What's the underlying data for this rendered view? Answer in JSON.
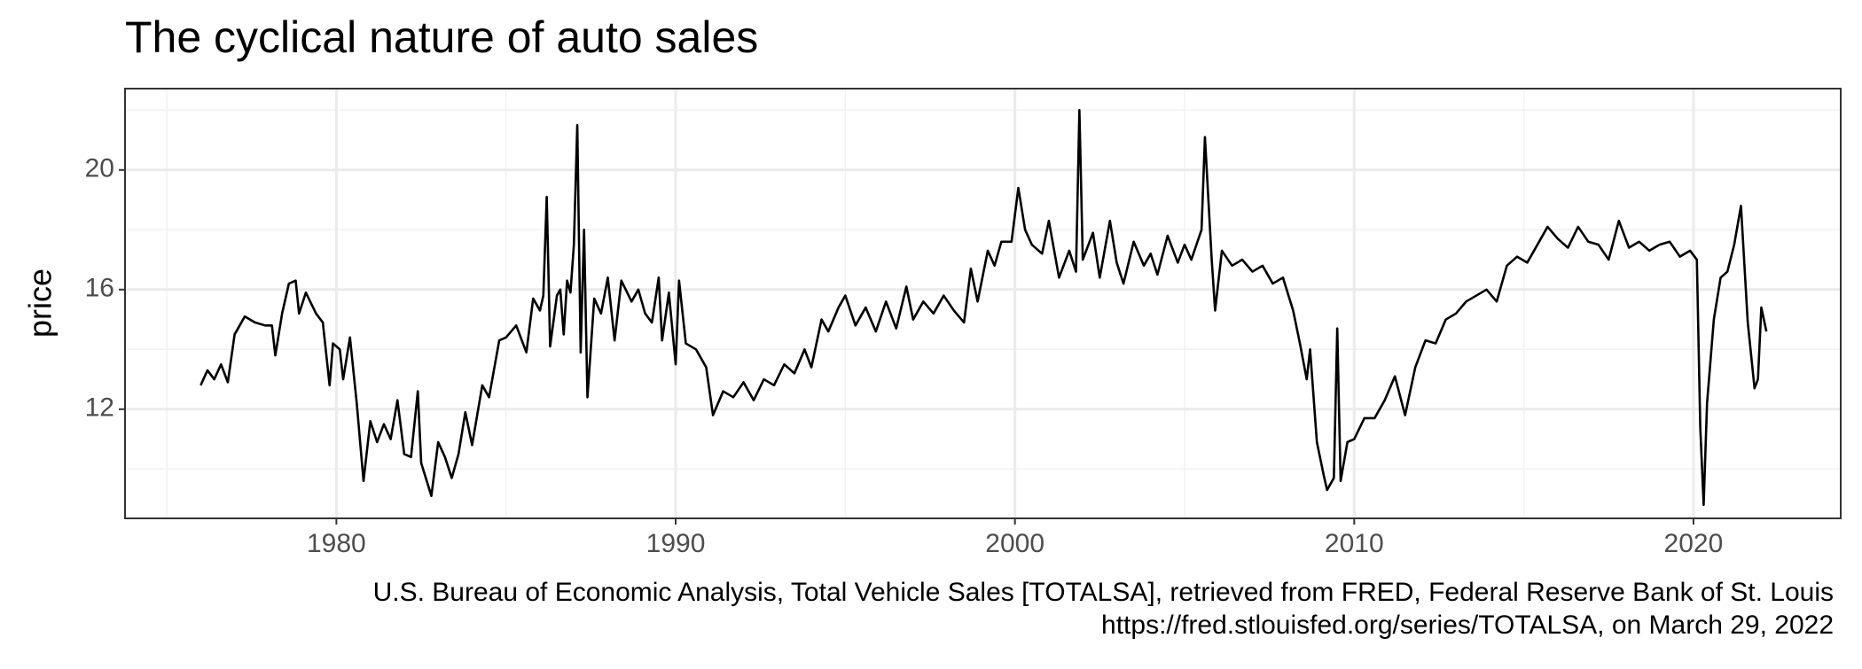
{
  "chart_data": {
    "type": "line",
    "title": "The cyclical nature of auto sales",
    "y_label": "price",
    "caption": [
      "U.S. Bureau of Economic Analysis, Total Vehicle Sales [TOTALSA], retrieved from FRED, Federal Reserve Bank of St. Louis",
      "https://fred.stlouisfed.org/series/TOTALSA, on March 29, 2022"
    ],
    "x": [
      1976.0,
      1976.2,
      1976.4,
      1976.6,
      1976.8,
      1977.0,
      1977.3,
      1977.6,
      1977.9,
      1978.1,
      1978.2,
      1978.4,
      1978.6,
      1978.8,
      1978.9,
      1979.1,
      1979.4,
      1979.6,
      1979.8,
      1979.9,
      1980.1,
      1980.2,
      1980.4,
      1980.6,
      1980.8,
      1981.0,
      1981.2,
      1981.4,
      1981.6,
      1981.8,
      1982.0,
      1982.2,
      1982.4,
      1982.5,
      1982.8,
      1983.0,
      1983.2,
      1983.4,
      1983.6,
      1983.8,
      1984.0,
      1984.3,
      1984.5,
      1984.8,
      1985.0,
      1985.3,
      1985.6,
      1985.8,
      1986.0,
      1986.1,
      1986.2,
      1986.3,
      1986.5,
      1986.6,
      1986.7,
      1986.8,
      1986.9,
      1987.0,
      1987.1,
      1987.2,
      1987.3,
      1987.4,
      1987.6,
      1987.8,
      1988.0,
      1988.2,
      1988.4,
      1988.7,
      1988.9,
      1989.1,
      1989.3,
      1989.5,
      1989.6,
      1989.8,
      1990.0,
      1990.1,
      1990.3,
      1990.6,
      1990.9,
      1991.1,
      1991.4,
      1991.7,
      1992.0,
      1992.3,
      1992.6,
      1992.9,
      1993.2,
      1993.5,
      1993.8,
      1994.0,
      1994.3,
      1994.5,
      1994.8,
      1995.0,
      1995.3,
      1995.6,
      1995.9,
      1996.2,
      1996.5,
      1996.8,
      1997.0,
      1997.3,
      1997.6,
      1997.9,
      1998.2,
      1998.5,
      1998.7,
      1998.9,
      1999.2,
      1999.4,
      1999.6,
      1999.9,
      2000.1,
      2000.3,
      2000.5,
      2000.8,
      2001.0,
      2001.3,
      2001.6,
      2001.8,
      2001.9,
      2002.0,
      2002.3,
      2002.5,
      2002.8,
      2003.0,
      2003.2,
      2003.5,
      2003.8,
      2004.0,
      2004.2,
      2004.5,
      2004.8,
      2005.0,
      2005.2,
      2005.5,
      2005.6,
      2005.8,
      2005.9,
      2006.1,
      2006.4,
      2006.7,
      2007.0,
      2007.3,
      2007.6,
      2007.9,
      2008.2,
      2008.4,
      2008.6,
      2008.7,
      2008.9,
      2009.1,
      2009.2,
      2009.4,
      2009.5,
      2009.6,
      2009.8,
      2010.0,
      2010.3,
      2010.6,
      2010.9,
      2011.2,
      2011.5,
      2011.8,
      2012.1,
      2012.4,
      2012.7,
      2013.0,
      2013.3,
      2013.6,
      2013.9,
      2014.2,
      2014.5,
      2014.8,
      2015.1,
      2015.4,
      2015.7,
      2016.0,
      2016.3,
      2016.6,
      2016.9,
      2017.2,
      2017.5,
      2017.8,
      2018.1,
      2018.4,
      2018.7,
      2019.0,
      2019.3,
      2019.6,
      2019.9,
      2020.1,
      2020.2,
      2020.3,
      2020.4,
      2020.6,
      2020.8,
      2021.0,
      2021.2,
      2021.4,
      2021.6,
      2021.8,
      2021.9,
      2022.0,
      2022.15
    ],
    "series": [
      {
        "color": "#000000",
        "values": [
          12.8,
          13.3,
          13.0,
          13.5,
          12.9,
          14.5,
          15.1,
          14.9,
          14.8,
          14.8,
          13.8,
          15.2,
          16.2,
          16.3,
          15.2,
          15.9,
          15.2,
          14.9,
          12.8,
          14.2,
          14.0,
          13.0,
          14.4,
          12.2,
          9.6,
          11.6,
          10.9,
          11.5,
          11.0,
          12.3,
          10.5,
          10.4,
          12.6,
          10.2,
          9.1,
          10.9,
          10.4,
          9.7,
          10.5,
          11.9,
          10.8,
          12.8,
          12.4,
          14.3,
          14.4,
          14.8,
          13.9,
          15.7,
          15.3,
          15.8,
          19.1,
          14.1,
          15.8,
          16.0,
          14.5,
          16.3,
          15.9,
          17.5,
          21.5,
          13.9,
          18.0,
          12.4,
          15.7,
          15.2,
          16.4,
          14.3,
          16.3,
          15.6,
          16.0,
          15.2,
          14.9,
          16.4,
          14.3,
          15.9,
          13.5,
          16.3,
          14.2,
          14.0,
          13.4,
          11.8,
          12.6,
          12.4,
          12.9,
          12.3,
          13.0,
          12.8,
          13.5,
          13.2,
          14.0,
          13.4,
          15.0,
          14.6,
          15.4,
          15.8,
          14.8,
          15.4,
          14.6,
          15.6,
          14.7,
          16.1,
          15.0,
          15.6,
          15.2,
          15.8,
          15.3,
          14.9,
          16.7,
          15.6,
          17.3,
          16.8,
          17.6,
          17.6,
          19.4,
          18.0,
          17.5,
          17.2,
          18.3,
          16.4,
          17.3,
          16.6,
          22.0,
          17.0,
          17.9,
          16.4,
          18.3,
          16.9,
          16.2,
          17.6,
          16.8,
          17.2,
          16.5,
          17.8,
          16.9,
          17.5,
          17.0,
          18.0,
          21.1,
          17.0,
          15.3,
          17.3,
          16.8,
          17.0,
          16.6,
          16.8,
          16.2,
          16.4,
          15.3,
          14.2,
          13.0,
          14.0,
          10.9,
          9.8,
          9.3,
          9.7,
          14.7,
          9.6,
          10.9,
          11.0,
          11.7,
          11.7,
          12.3,
          13.1,
          11.8,
          13.4,
          14.3,
          14.2,
          15.0,
          15.2,
          15.6,
          15.8,
          16.0,
          15.6,
          16.8,
          17.1,
          16.9,
          17.5,
          18.1,
          17.7,
          17.4,
          18.1,
          17.6,
          17.5,
          17.0,
          18.3,
          17.4,
          17.6,
          17.3,
          17.5,
          17.6,
          17.1,
          17.3,
          17.0,
          11.4,
          8.8,
          12.2,
          15.0,
          16.4,
          16.6,
          17.5,
          18.8,
          14.9,
          12.7,
          13.0,
          15.4,
          14.6
        ]
      }
    ],
    "xlim": [
      1973.77,
      2024.34
    ],
    "xticks": [
      1980,
      1990,
      2000,
      2010,
      2020
    ],
    "ylim": [
      8.35,
      22.72
    ],
    "yticks": [
      12,
      16,
      20
    ],
    "grid": true
  }
}
